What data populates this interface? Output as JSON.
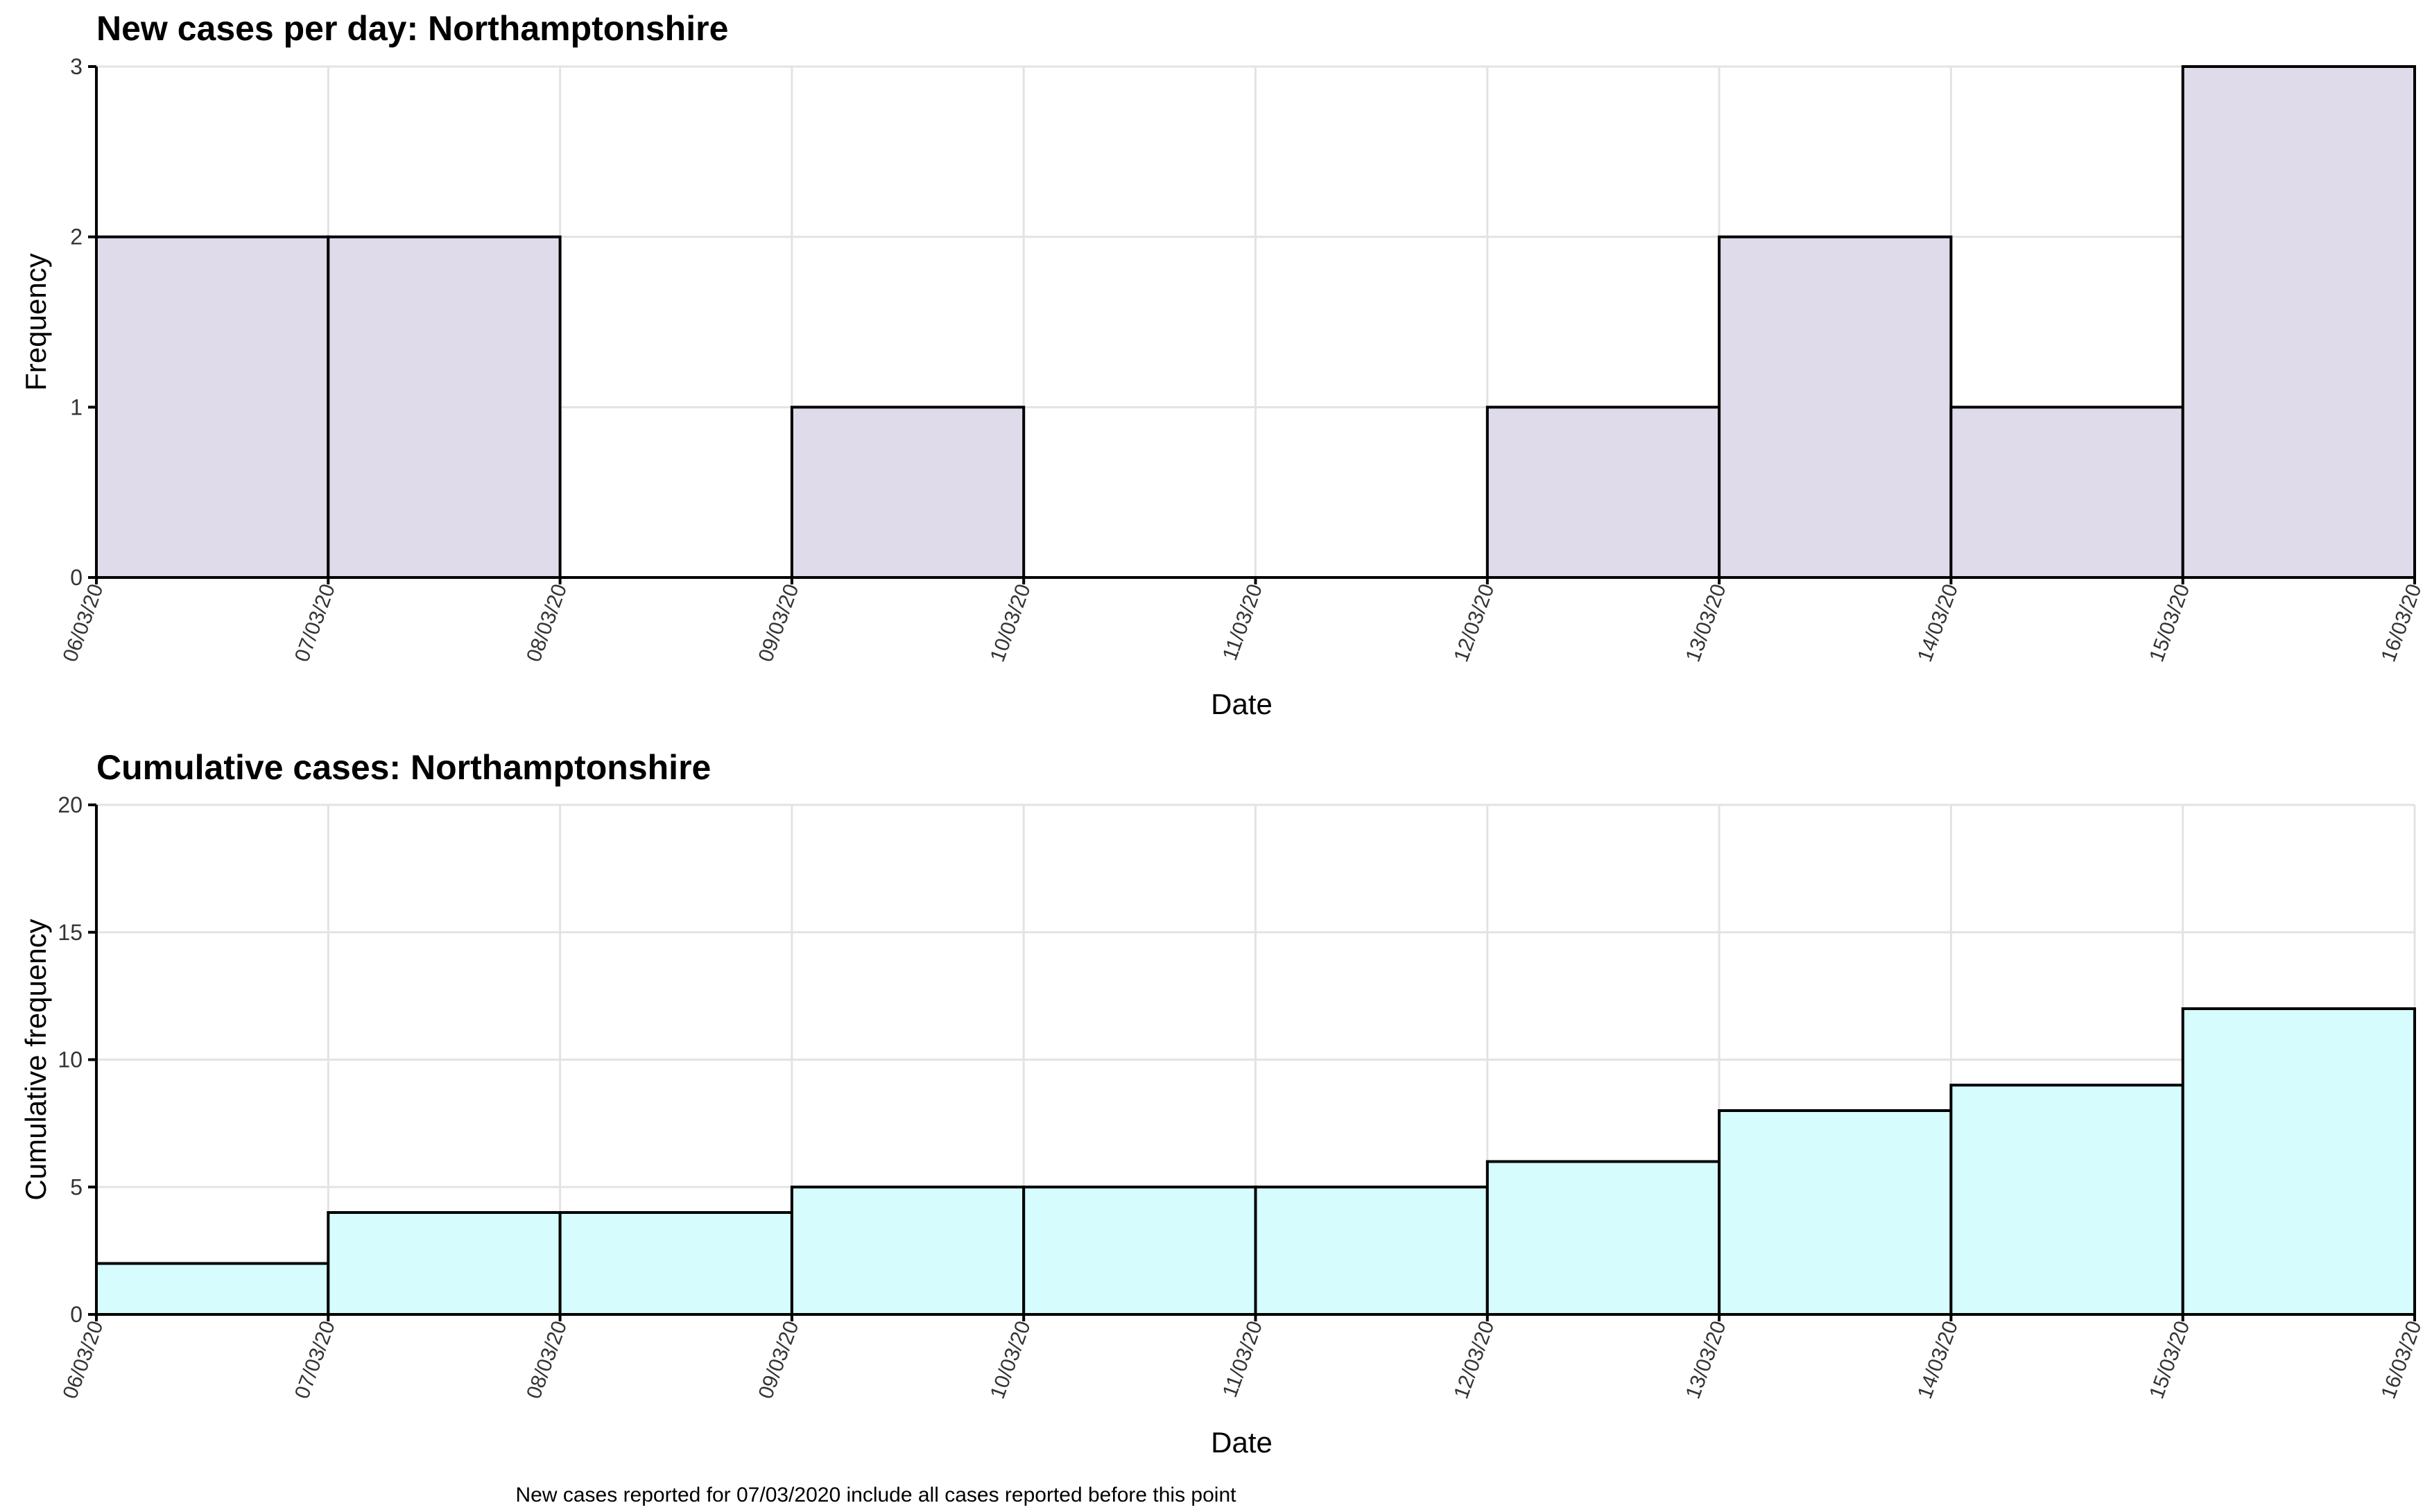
{
  "chart_data": [
    {
      "type": "bar",
      "title": "New cases per day: Northamptonshire",
      "xlabel": "Date",
      "ylabel": "Frequency",
      "categories": [
        "06/03/20",
        "07/03/20",
        "08/03/20",
        "09/03/20",
        "10/03/20",
        "11/03/20",
        "12/03/20",
        "13/03/20",
        "14/03/20",
        "15/03/20"
      ],
      "x_ticks": [
        "06/03/20",
        "07/03/20",
        "08/03/20",
        "09/03/20",
        "10/03/20",
        "11/03/20",
        "12/03/20",
        "13/03/20",
        "14/03/20",
        "15/03/20",
        "16/03/20"
      ],
      "values": [
        2,
        2,
        0,
        1,
        0,
        0,
        1,
        2,
        1,
        3
      ],
      "ylim": [
        0,
        3
      ],
      "y_ticks": [
        0,
        1,
        2,
        3
      ],
      "grid": true,
      "fill_color": "#e0dbea"
    },
    {
      "type": "bar",
      "title": "Cumulative cases: Northamptonshire",
      "xlabel": "Date",
      "ylabel": "Cumulative frequency",
      "categories": [
        "06/03/20",
        "07/03/20",
        "08/03/20",
        "09/03/20",
        "10/03/20",
        "11/03/20",
        "12/03/20",
        "13/03/20",
        "14/03/20",
        "15/03/20"
      ],
      "x_ticks": [
        "06/03/20",
        "07/03/20",
        "08/03/20",
        "09/03/20",
        "10/03/20",
        "11/03/20",
        "12/03/20",
        "13/03/20",
        "14/03/20",
        "15/03/20",
        "16/03/20"
      ],
      "values": [
        2,
        4,
        4,
        5,
        5,
        5,
        6,
        8,
        9,
        12
      ],
      "ylim": [
        0,
        20
      ],
      "y_ticks": [
        0,
        5,
        10,
        15,
        20
      ],
      "grid": true,
      "fill_color": "#d6fcfd"
    }
  ],
  "caption": "New cases reported for 07/03/2020 include all cases reported before this point"
}
